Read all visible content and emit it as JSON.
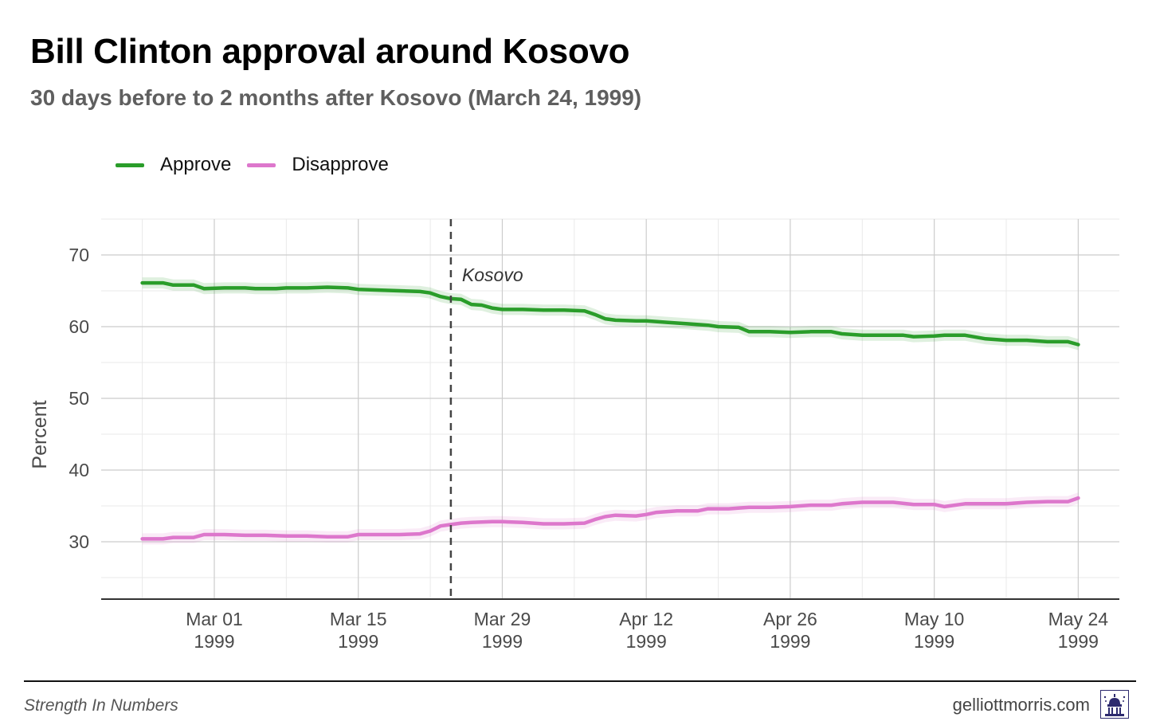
{
  "title": "Bill Clinton approval around Kosovo",
  "subtitle": "30 days before to 2 months after Kosovo (March 24, 1999)",
  "footer": {
    "source": "Strength In Numbers",
    "site": "gelliottmorris.com"
  },
  "colors": {
    "approve": "#2a9d2a",
    "disapprove": "#dd77cc",
    "grid": "#cccccc",
    "axis": "#333333",
    "annotation": "#444444"
  },
  "chart_data": {
    "type": "line",
    "title": "Bill Clinton approval around Kosovo",
    "subtitle": "30 days before to 2 months after Kosovo (March 24, 1999)",
    "xlabel": "",
    "ylabel": "Percent",
    "ylim": [
      22,
      75
    ],
    "xlim": [
      "1999-02-18",
      "1999-05-28"
    ],
    "grid": true,
    "legend_position": "top-left",
    "yticks": [
      30,
      40,
      50,
      60,
      70
    ],
    "xticks": [
      {
        "date": "1999-03-01",
        "label": [
          "Mar 01",
          "1999"
        ]
      },
      {
        "date": "1999-03-15",
        "label": [
          "Mar 15",
          "1999"
        ]
      },
      {
        "date": "1999-03-29",
        "label": [
          "Mar 29",
          "1999"
        ]
      },
      {
        "date": "1999-04-12",
        "label": [
          "Apr 12",
          "1999"
        ]
      },
      {
        "date": "1999-04-26",
        "label": [
          "Apr 26",
          "1999"
        ]
      },
      {
        "date": "1999-05-10",
        "label": [
          "May 10",
          "1999"
        ]
      },
      {
        "date": "1999-05-24",
        "label": [
          "May 24",
          "1999"
        ]
      }
    ],
    "annotations": [
      {
        "date": "1999-03-24",
        "label": "Kosovo",
        "style": "dashed vertical line"
      }
    ],
    "series": [
      {
        "name": "Approve",
        "color": "#2a9d2a",
        "points": [
          [
            "1999-02-22",
            66.1
          ],
          [
            "1999-02-24",
            66.1
          ],
          [
            "1999-02-25",
            65.8
          ],
          [
            "1999-02-27",
            65.8
          ],
          [
            "1999-02-28",
            65.3
          ],
          [
            "1999-03-02",
            65.4
          ],
          [
            "1999-03-04",
            65.4
          ],
          [
            "1999-03-05",
            65.3
          ],
          [
            "1999-03-07",
            65.3
          ],
          [
            "1999-03-08",
            65.4
          ],
          [
            "1999-03-10",
            65.4
          ],
          [
            "1999-03-12",
            65.5
          ],
          [
            "1999-03-14",
            65.4
          ],
          [
            "1999-03-15",
            65.2
          ],
          [
            "1999-03-17",
            65.1
          ],
          [
            "1999-03-19",
            65.0
          ],
          [
            "1999-03-21",
            64.9
          ],
          [
            "1999-03-22",
            64.7
          ],
          [
            "1999-03-23",
            64.2
          ],
          [
            "1999-03-24",
            63.9
          ],
          [
            "1999-03-25",
            63.8
          ],
          [
            "1999-03-26",
            63.1
          ],
          [
            "1999-03-27",
            63.0
          ],
          [
            "1999-03-28",
            62.6
          ],
          [
            "1999-03-29",
            62.4
          ],
          [
            "1999-03-31",
            62.4
          ],
          [
            "1999-04-02",
            62.3
          ],
          [
            "1999-04-04",
            62.3
          ],
          [
            "1999-04-06",
            62.2
          ],
          [
            "1999-04-07",
            61.7
          ],
          [
            "1999-04-08",
            61.1
          ],
          [
            "1999-04-09",
            60.9
          ],
          [
            "1999-04-11",
            60.8
          ],
          [
            "1999-04-12",
            60.8
          ],
          [
            "1999-04-14",
            60.6
          ],
          [
            "1999-04-16",
            60.4
          ],
          [
            "1999-04-18",
            60.2
          ],
          [
            "1999-04-19",
            60.0
          ],
          [
            "1999-04-21",
            59.9
          ],
          [
            "1999-04-22",
            59.3
          ],
          [
            "1999-04-24",
            59.3
          ],
          [
            "1999-04-26",
            59.2
          ],
          [
            "1999-04-28",
            59.3
          ],
          [
            "1999-04-30",
            59.3
          ],
          [
            "1999-05-01",
            59.0
          ],
          [
            "1999-05-03",
            58.8
          ],
          [
            "1999-05-05",
            58.8
          ],
          [
            "1999-05-07",
            58.8
          ],
          [
            "1999-05-08",
            58.6
          ],
          [
            "1999-05-10",
            58.7
          ],
          [
            "1999-05-11",
            58.8
          ],
          [
            "1999-05-13",
            58.8
          ],
          [
            "1999-05-15",
            58.3
          ],
          [
            "1999-05-17",
            58.1
          ],
          [
            "1999-05-19",
            58.1
          ],
          [
            "1999-05-21",
            57.9
          ],
          [
            "1999-05-23",
            57.9
          ],
          [
            "1999-05-24",
            57.5
          ]
        ]
      },
      {
        "name": "Disapprove",
        "color": "#dd77cc",
        "points": [
          [
            "1999-02-22",
            30.4
          ],
          [
            "1999-02-24",
            30.4
          ],
          [
            "1999-02-25",
            30.6
          ],
          [
            "1999-02-27",
            30.6
          ],
          [
            "1999-02-28",
            31.0
          ],
          [
            "1999-03-02",
            31.0
          ],
          [
            "1999-03-04",
            30.9
          ],
          [
            "1999-03-06",
            30.9
          ],
          [
            "1999-03-08",
            30.8
          ],
          [
            "1999-03-10",
            30.8
          ],
          [
            "1999-03-12",
            30.7
          ],
          [
            "1999-03-14",
            30.7
          ],
          [
            "1999-03-15",
            31.0
          ],
          [
            "1999-03-17",
            31.0
          ],
          [
            "1999-03-19",
            31.0
          ],
          [
            "1999-03-21",
            31.1
          ],
          [
            "1999-03-22",
            31.5
          ],
          [
            "1999-03-23",
            32.2
          ],
          [
            "1999-03-24",
            32.4
          ],
          [
            "1999-03-25",
            32.6
          ],
          [
            "1999-03-26",
            32.7
          ],
          [
            "1999-03-28",
            32.8
          ],
          [
            "1999-03-29",
            32.8
          ],
          [
            "1999-03-31",
            32.7
          ],
          [
            "1999-04-02",
            32.5
          ],
          [
            "1999-04-04",
            32.5
          ],
          [
            "1999-04-06",
            32.6
          ],
          [
            "1999-04-07",
            33.1
          ],
          [
            "1999-04-08",
            33.5
          ],
          [
            "1999-04-09",
            33.7
          ],
          [
            "1999-04-11",
            33.6
          ],
          [
            "1999-04-12",
            33.8
          ],
          [
            "1999-04-13",
            34.1
          ],
          [
            "1999-04-15",
            34.3
          ],
          [
            "1999-04-17",
            34.3
          ],
          [
            "1999-04-18",
            34.6
          ],
          [
            "1999-04-20",
            34.6
          ],
          [
            "1999-04-22",
            34.8
          ],
          [
            "1999-04-24",
            34.8
          ],
          [
            "1999-04-26",
            34.9
          ],
          [
            "1999-04-28",
            35.1
          ],
          [
            "1999-04-30",
            35.1
          ],
          [
            "1999-05-01",
            35.3
          ],
          [
            "1999-05-03",
            35.5
          ],
          [
            "1999-05-05",
            35.5
          ],
          [
            "1999-05-06",
            35.5
          ],
          [
            "1999-05-08",
            35.2
          ],
          [
            "1999-05-10",
            35.2
          ],
          [
            "1999-05-11",
            34.9
          ],
          [
            "1999-05-13",
            35.3
          ],
          [
            "1999-05-15",
            35.3
          ],
          [
            "1999-05-17",
            35.3
          ],
          [
            "1999-05-19",
            35.5
          ],
          [
            "1999-05-21",
            35.6
          ],
          [
            "1999-05-23",
            35.6
          ],
          [
            "1999-05-24",
            36.1
          ]
        ]
      }
    ]
  }
}
